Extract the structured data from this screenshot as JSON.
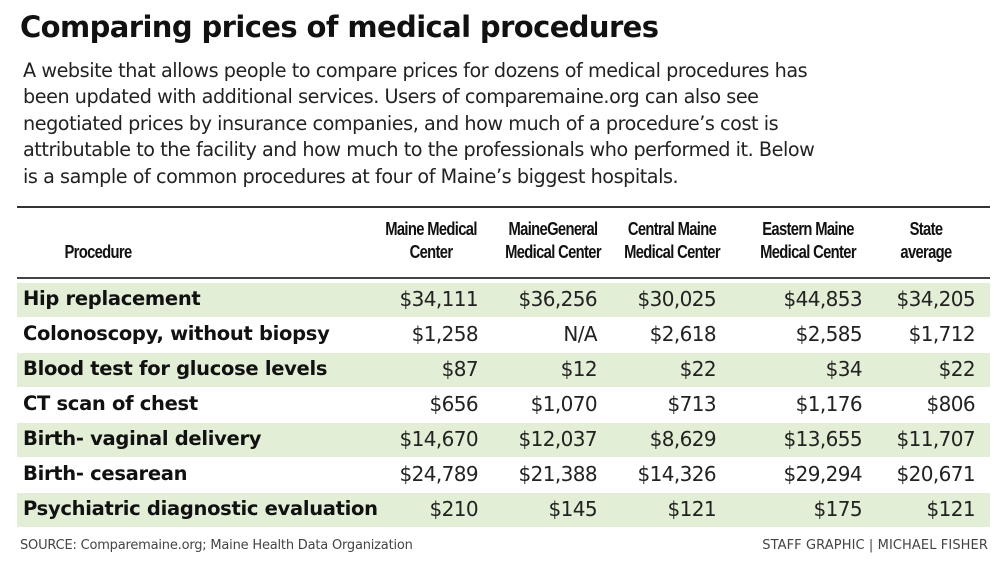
{
  "title": "Comparing prices of medical procedures",
  "intro_lines": [
    "A website that allows people to compare prices for dozens of medical procedures has",
    "been updated with additional services. Users of comparemaine.org can also see",
    "negotiated prices by insurance companies, and how much of a procedure’s cost is",
    "attributable to the facility and how much to the professionals who performed it. Below",
    "is a sample of common procedures at four of Maine’s biggest hospitals."
  ],
  "table": {
    "headers": [
      {
        "line1": "",
        "line2": "Procedure"
      },
      {
        "line1": "Maine Medical",
        "line2": "Center"
      },
      {
        "line1": "MaineGeneral",
        "line2": "Medical Center"
      },
      {
        "line1": "Central Maine",
        "line2": "Medical Center"
      },
      {
        "line1": "Eastern Maine",
        "line2": "Medical Center"
      },
      {
        "line1": "State",
        "line2": "average"
      }
    ],
    "rows": [
      {
        "procedure": "Hip replacement",
        "values": [
          "$34,111",
          "$36,256",
          "$30,025",
          "$44,853",
          "$34,205"
        ]
      },
      {
        "procedure": "Colonoscopy, without biopsy",
        "values": [
          "$1,258",
          "N/A",
          "$2,618",
          "$2,585",
          "$1,712"
        ]
      },
      {
        "procedure": "Blood test for glucose levels",
        "values": [
          "$87",
          "$12",
          "$22",
          "$34",
          "$22"
        ]
      },
      {
        "procedure": "CT scan of chest",
        "values": [
          "$656",
          "$1,070",
          "$713",
          "$1,176",
          "$806"
        ]
      },
      {
        "procedure": "Birth- vaginal delivery",
        "values": [
          "$14,670",
          "$12,037",
          "$8,629",
          "$13,655",
          "$11,707"
        ]
      },
      {
        "procedure": "Birth- cesarean",
        "values": [
          "$24,789",
          "$21,388",
          "$14,326",
          "$29,294",
          "$20,671"
        ]
      },
      {
        "procedure": "Psychiatric diagnostic evaluation",
        "values": [
          "$210",
          "$145",
          "$121",
          "$175",
          "$121"
        ]
      }
    ]
  },
  "source": "SOURCE: Comparemaine.org; Maine Health Data Organization",
  "credit": "STAFF GRAPHIC | MICHAEL FISHER",
  "colors": {
    "row_shade": "#e3eed6",
    "text": "#111111",
    "rule": "#333333"
  },
  "chart_data": {
    "type": "table",
    "title": "Comparing prices of medical procedures",
    "columns": [
      "Procedure",
      "Maine Medical Center",
      "MaineGeneral Medical Center",
      "Central Maine Medical Center",
      "Eastern Maine Medical Center",
      "State average"
    ],
    "rows": [
      [
        "Hip replacement",
        34111,
        36256,
        30025,
        44853,
        34205
      ],
      [
        "Colonoscopy, without biopsy",
        1258,
        null,
        2618,
        2585,
        1712
      ],
      [
        "Blood test for glucose levels",
        87,
        12,
        22,
        34,
        22
      ],
      [
        "CT scan of chest",
        656,
        1070,
        713,
        1176,
        806
      ],
      [
        "Birth- vaginal delivery",
        14670,
        12037,
        8629,
        13655,
        11707
      ],
      [
        "Birth- cesarean",
        24789,
        21388,
        14326,
        29294,
        20671
      ],
      [
        "Psychiatric diagnostic evaluation",
        210,
        145,
        121,
        175,
        121
      ]
    ],
    "units": "USD",
    "source": "Comparemaine.org; Maine Health Data Organization"
  }
}
